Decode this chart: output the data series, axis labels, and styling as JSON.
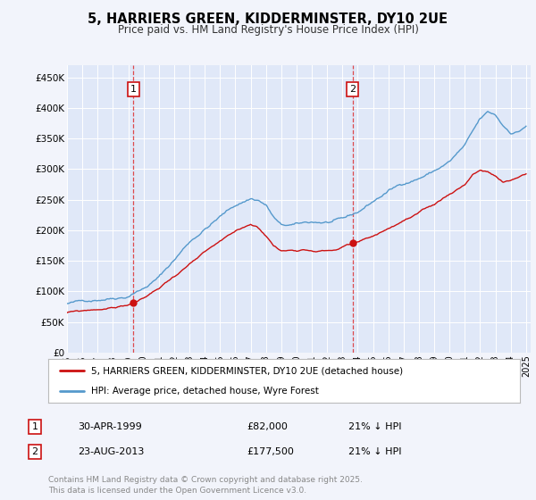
{
  "title": "5, HARRIERS GREEN, KIDDERMINSTER, DY10 2UE",
  "subtitle": "Price paid vs. HM Land Registry's House Price Index (HPI)",
  "background_color": "#f0f4ff",
  "plot_bg_color": "#e0e8f8",
  "hpi_color": "#5599cc",
  "price_color": "#cc1111",
  "legend_line1": "5, HARRIERS GREEN, KIDDERMINSTER, DY10 2UE (detached house)",
  "legend_line2": "HPI: Average price, detached house, Wyre Forest",
  "footer": "Contains HM Land Registry data © Crown copyright and database right 2025.\nThis data is licensed under the Open Government Licence v3.0.",
  "ylim": [
    0,
    470000
  ],
  "yticks": [
    0,
    50000,
    100000,
    150000,
    200000,
    250000,
    300000,
    350000,
    400000,
    450000
  ],
  "ytick_labels": [
    "£0",
    "£50K",
    "£100K",
    "£150K",
    "£200K",
    "£250K",
    "£300K",
    "£350K",
    "£400K",
    "£450K"
  ],
  "m1_year": 1999.33,
  "m2_year": 2013.65,
  "m1_price": 82000,
  "m2_price": 177500
}
